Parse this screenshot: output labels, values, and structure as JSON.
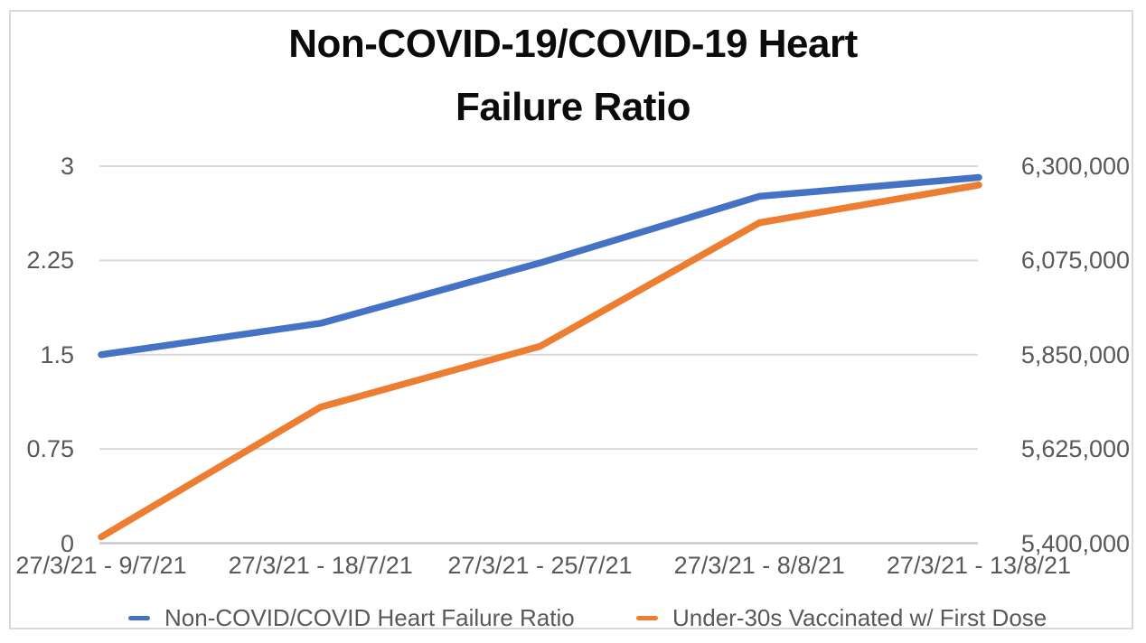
{
  "chart_data": {
    "type": "line",
    "title": "Non-COVID-19/COVID-19 Heart Failure Ratio",
    "title_lines": [
      "Non-COVID-19/COVID-19 Heart",
      "Failure Ratio"
    ],
    "categories": [
      "27/3/21 - 9/7/21",
      "27/3/21 - 18/7/21",
      "27/3/21 - 25/7/21",
      "27/3/21 - 8/8/21",
      "27/3/21 - 13/8/21"
    ],
    "series": [
      {
        "name": "Non-COVID/COVID Heart Failure Ratio",
        "axis": "left",
        "color": "#4472C4",
        "values": [
          1.5,
          1.75,
          2.23,
          2.76,
          2.91
        ]
      },
      {
        "name": "Under-30s Vaccinated w/ First Dose",
        "axis": "right",
        "color": "#ED7D31",
        "values": [
          5415000,
          5725000,
          5870000,
          6165000,
          6255000
        ]
      }
    ],
    "left_axis": {
      "min": 0,
      "max": 3,
      "ticks": [
        0,
        0.75,
        1.5,
        2.25,
        3
      ],
      "tick_labels": [
        "0",
        "0.75",
        "1.5",
        "2.25",
        "3"
      ]
    },
    "right_axis": {
      "min": 5400000,
      "max": 6300000,
      "ticks": [
        5400000,
        5625000,
        5850000,
        6075000,
        6300000
      ],
      "tick_labels": [
        "5,400,000",
        "5,625,000",
        "5,850,000",
        "6,075,000",
        "6,300,000"
      ]
    },
    "grid": true,
    "legend_position": "bottom"
  },
  "colors": {
    "background": "#FFFFFF",
    "frame_border": "#D9D9D9",
    "gridline": "#D9D9D9",
    "baseline": "#C9C9C9",
    "axis_text": "#595959",
    "title_text": "#0B0B0B"
  }
}
